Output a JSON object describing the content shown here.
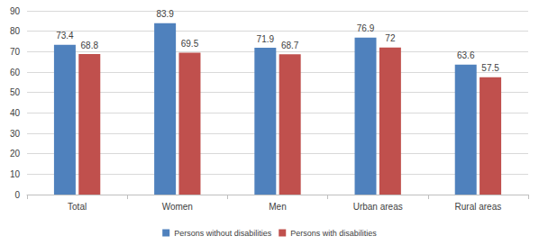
{
  "chart_data": {
    "type": "bar",
    "categories": [
      "Total",
      "Women",
      "Men",
      "Urban areas",
      "Rural areas"
    ],
    "series": [
      {
        "name": "Persons without disabilities",
        "color": "#4f81bd",
        "values": [
          73.4,
          83.9,
          71.9,
          76.9,
          63.6
        ]
      },
      {
        "name": "Persons with disabilities",
        "color": "#c0504d",
        "values": [
          68.8,
          69.5,
          68.7,
          72,
          57.5
        ]
      }
    ],
    "ylim": [
      0,
      90
    ],
    "yticks": [
      0,
      10,
      20,
      30,
      40,
      50,
      60,
      70,
      80,
      90
    ],
    "grid": true,
    "legend": "bottom",
    "data_labels": true
  }
}
